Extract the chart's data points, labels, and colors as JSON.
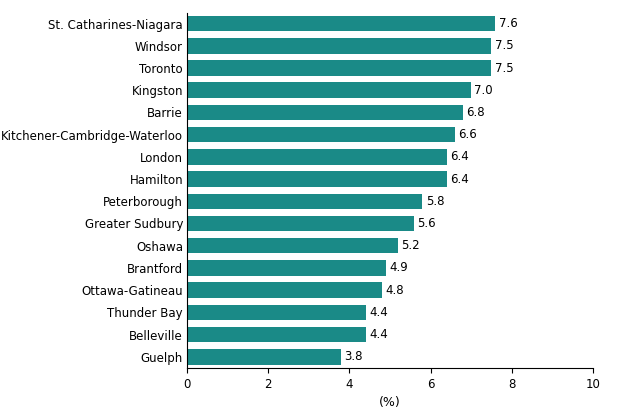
{
  "categories": [
    "Guelph",
    "Belleville",
    "Thunder Bay",
    "Ottawa-Gatineau",
    "Brantford",
    "Oshawa",
    "Greater Sudbury",
    "Peterborough",
    "Hamilton",
    "London",
    "Kitchener-Cambridge-Waterloo",
    "Barrie",
    "Kingston",
    "Toronto",
    "Windsor",
    "St. Catharines-Niagara"
  ],
  "values": [
    3.8,
    4.4,
    4.4,
    4.8,
    4.9,
    5.2,
    5.6,
    5.8,
    6.4,
    6.4,
    6.6,
    6.8,
    7.0,
    7.5,
    7.5,
    7.6
  ],
  "bar_color": "#1a8a87",
  "xlabel": "(%)",
  "xlim": [
    0,
    10
  ],
  "xticks": [
    0,
    2,
    4,
    6,
    8,
    10
  ],
  "background_color": "#ffffff",
  "label_fontsize": 8.5,
  "value_fontsize": 8.5,
  "xlabel_fontsize": 9,
  "bar_height": 0.7,
  "figsize": [
    6.24,
    4.18
  ],
  "dpi": 100
}
